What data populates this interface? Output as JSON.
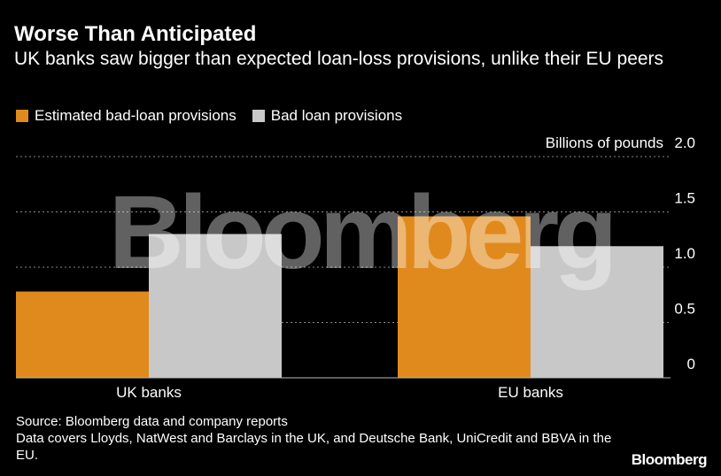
{
  "header": {
    "title": "Worse Than Anticipated",
    "subtitle": "UK banks saw bigger than expected loan-loss provisions, unlike their EU peers"
  },
  "chart_data": {
    "type": "bar",
    "categories": [
      "UK banks",
      "EU banks"
    ],
    "series": [
      {
        "name": "Estimated bad-loan provisions",
        "values": [
          0.78,
          1.46
        ],
        "color": "#e08a1e"
      },
      {
        "name": "Bad loan provisions",
        "values": [
          1.3,
          1.19
        ],
        "color": "#c8c8c8"
      }
    ],
    "ylabel": "Billions of pounds",
    "ylim": [
      0,
      2.0
    ],
    "yticks": [
      0,
      0.5,
      1.0,
      1.5,
      2.0
    ],
    "ytick_labels": [
      "0",
      "0.5",
      "1.0",
      "1.5",
      "2.0"
    ],
    "grid": true,
    "legend_position": "top-left",
    "watermark": "Bloomberg"
  },
  "footer": {
    "source_line1": "Source: Bloomberg data and company reports",
    "source_line2": "Data covers Lloyds, NatWest and Barclays in the UK, and Deutsche Bank, UniCredit and BBVA in the EU.",
    "brand": "Bloomberg"
  }
}
